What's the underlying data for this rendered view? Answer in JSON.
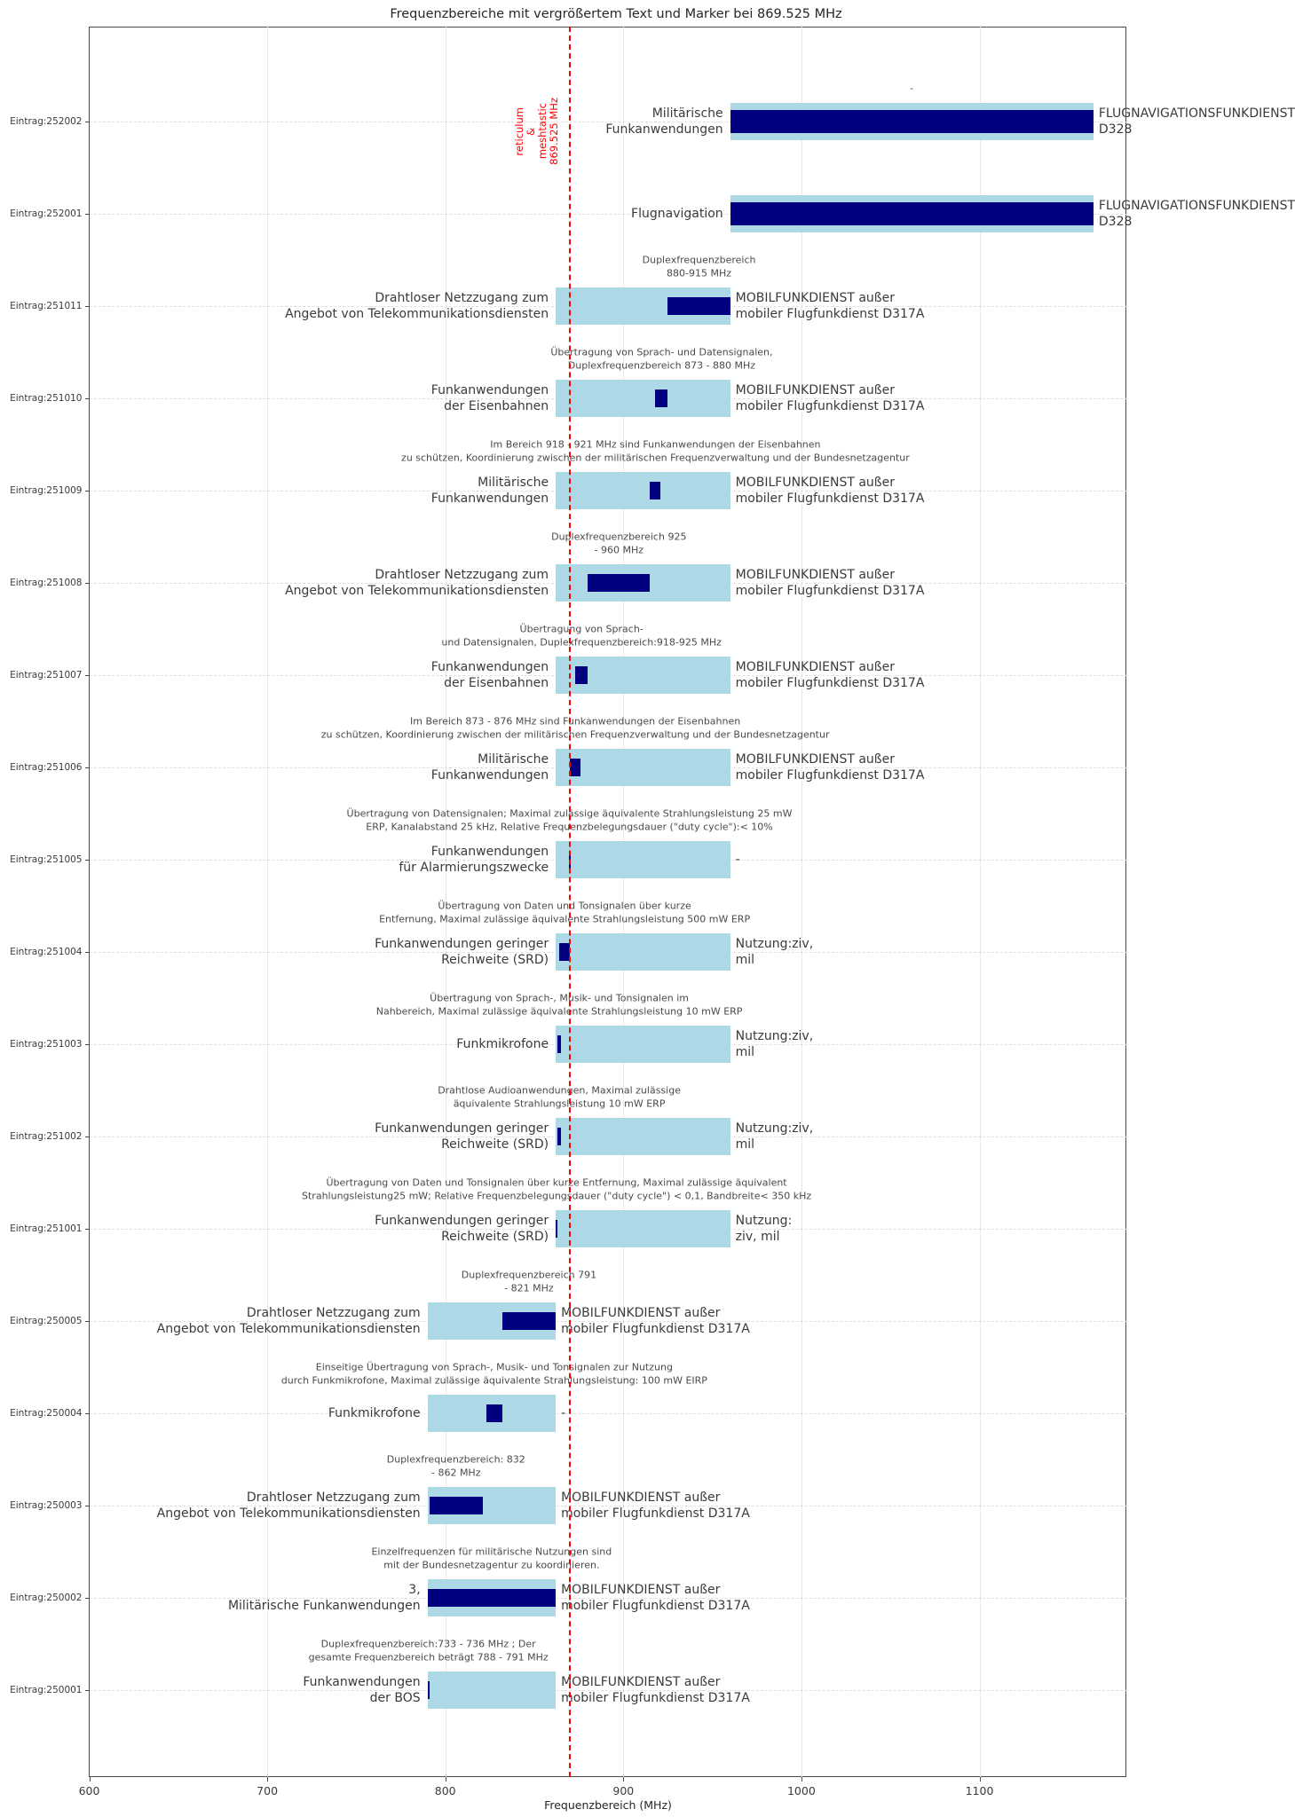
{
  "chart_data": {
    "type": "bar",
    "orientation": "horizontal-range",
    "title": "Frequenzbereiche mit vergrößertem Text und Marker bei 869.525 MHz",
    "xlabel": "Frequenzbereich (MHz)",
    "xticks": [
      600,
      700,
      800,
      900,
      1000,
      1100
    ],
    "xlim": [
      600,
      1183
    ],
    "grid": true,
    "marker": {
      "mhz": 869.525,
      "label_lines": [
        "reticulum",
        "&",
        "meshtastic",
        "869.525 MHz"
      ],
      "color": "#ff0000",
      "style": "dashed-vertical"
    },
    "legend": "none",
    "rows": [
      {
        "id": "Eintrag:252002",
        "group": "252",
        "left_label": "Militärische\nFunkanwendungen",
        "right_label": "FLUGNAVIGATIONSFUNKDIENST\nD328",
        "annotation": "-",
        "band_mhz": [
          960,
          1164
        ],
        "allocation_mhz": [
          960,
          1164
        ]
      },
      {
        "id": "Eintrag:252001",
        "group": "252",
        "left_label": "Flugnavigation",
        "right_label": "FLUGNAVIGATIONSFUNKDIENST\nD328",
        "annotation": "",
        "band_mhz": [
          960,
          1164
        ],
        "allocation_mhz": [
          960,
          1164
        ]
      },
      {
        "id": "Eintrag:251011",
        "group": "251",
        "left_label": "Drahtloser Netzzugang zum\nAngebot von Telekommunikationsdiensten",
        "right_label": "MOBILFUNKDIENST außer\nmobiler Flugfunkdienst D317A",
        "annotation": "Duplexfrequenzbereich\n880-915 MHz",
        "band_mhz": [
          862,
          960
        ],
        "allocation_mhz": [
          925,
          960
        ]
      },
      {
        "id": "Eintrag:251010",
        "group": "251",
        "left_label": "Funkanwendungen\nder Eisenbahnen",
        "right_label": "MOBILFUNKDIENST außer\nmobiler Flugfunkdienst D317A",
        "annotation": "Übertragung von Sprach- und Datensignalen,\nDuplexfrequenzbereich 873 - 880 MHz",
        "band_mhz": [
          862,
          960
        ],
        "allocation_mhz": [
          918,
          925
        ]
      },
      {
        "id": "Eintrag:251009",
        "group": "251",
        "left_label": "Militärische\nFunkanwendungen",
        "right_label": "MOBILFUNKDIENST außer\nmobiler Flugfunkdienst D317A",
        "annotation": "Im Bereich 918 - 921 MHz sind Funkanwendungen der Eisenbahnen\nzu schützen, Koordinierung zwischen der militärischen Frequenzverwaltung und der Bundesnetzagentur",
        "band_mhz": [
          862,
          960
        ],
        "allocation_mhz": [
          915,
          921
        ]
      },
      {
        "id": "Eintrag:251008",
        "group": "251",
        "left_label": "Drahtloser Netzzugang zum\nAngebot von Telekommunikationsdiensten",
        "right_label": "MOBILFUNKDIENST außer\nmobiler Flugfunkdienst D317A",
        "annotation": "Duplexfrequenzbereich 925\n- 960 MHz",
        "band_mhz": [
          862,
          960
        ],
        "allocation_mhz": [
          880,
          915
        ]
      },
      {
        "id": "Eintrag:251007",
        "group": "251",
        "left_label": "Funkanwendungen\nder Eisenbahnen",
        "right_label": "MOBILFUNKDIENST außer\nmobiler Flugfunkdienst D317A",
        "annotation": "Übertragung von Sprach-\nund Datensignalen, Duplexfrequenzbereich:918-925 MHz",
        "band_mhz": [
          862,
          960
        ],
        "allocation_mhz": [
          873,
          880
        ]
      },
      {
        "id": "Eintrag:251006",
        "group": "251",
        "left_label": "Militärische\nFunkanwendungen",
        "right_label": "MOBILFUNKDIENST außer\nmobiler Flugfunkdienst D317A",
        "annotation": "Im Bereich 873 - 876 MHz sind Funkanwendungen der Eisenbahnen\nzu schützen, Koordinierung zwischen der militärischen Frequenzverwaltung und der Bundesnetzagentur",
        "band_mhz": [
          862,
          960
        ],
        "allocation_mhz": [
          870,
          876
        ]
      },
      {
        "id": "Eintrag:251005",
        "group": "251",
        "left_label": "Funkanwendungen\nfür Alarmierungszwecke",
        "right_label": "-",
        "annotation": "Übertragung von Datensignalen; Maximal zulässige äquivalente Strahlungsleistung 25 mW\nERP, Kanalabstand 25 kHz, Relative Frequenzbelegungsdauer (\"duty cycle\"):< 10%",
        "band_mhz": [
          862,
          960
        ],
        "allocation_mhz": [
          869.4,
          870
        ]
      },
      {
        "id": "Eintrag:251004",
        "group": "251",
        "left_label": "Funkanwendungen geringer\nReichweite (SRD)",
        "right_label": "Nutzung:ziv,\nmil",
        "annotation": "Übertragung von Daten und Tonsignalen über kurze\nEntfernung, Maximal zulässige äquivalente Strahlungsleistung 500 mW ERP",
        "band_mhz": [
          862,
          960
        ],
        "allocation_mhz": [
          864,
          870
        ]
      },
      {
        "id": "Eintrag:251003",
        "group": "251",
        "left_label": "Funkmikrofone",
        "right_label": "Nutzung:ziv,\nmil",
        "annotation": "Übertragung von Sprach-, Musik- und Tonsignalen im\nNahbereich, Maximal zulässige äquivalente Strahlungsleistung 10 mW ERP",
        "band_mhz": [
          862,
          960
        ],
        "allocation_mhz": [
          863,
          865
        ]
      },
      {
        "id": "Eintrag:251002",
        "group": "251",
        "left_label": "Funkanwendungen geringer\nReichweite (SRD)",
        "right_label": "Nutzung:ziv,\nmil",
        "annotation": "Drahtlose Audioanwendungen, Maximal zulässige\näquivalente Strahlungsleistung 10 mW ERP",
        "band_mhz": [
          862,
          960
        ],
        "allocation_mhz": [
          863,
          865
        ]
      },
      {
        "id": "Eintrag:251001",
        "group": "251",
        "left_label": "Funkanwendungen geringer\nReichweite (SRD)",
        "right_label": "Nutzung:\nziv, mil",
        "annotation": "Übertragung von Daten und Tonsignalen über kurze Entfernung, Maximal zulässige äquivalent\nStrahlungsleistung25 mW; Relative Frequenzbelegungsdauer (\"duty cycle\") < 0,1, Bandbreite< 350 kHz",
        "band_mhz": [
          862,
          960
        ],
        "allocation_mhz": [
          862,
          863
        ]
      },
      {
        "id": "Eintrag:250005",
        "group": "250",
        "left_label": "Drahtloser Netzzugang zum\nAngebot von Telekommunikationsdiensten",
        "right_label": "MOBILFUNKDIENST außer\nmobiler Flugfunkdienst D317A",
        "annotation": "Duplexfrequenzbereich 791\n- 821 MHz",
        "band_mhz": [
          790,
          862
        ],
        "allocation_mhz": [
          832,
          862
        ]
      },
      {
        "id": "Eintrag:250004",
        "group": "250",
        "left_label": "Funkmikrofone",
        "right_label": "-",
        "annotation": "Einseitige Übertragung von Sprach-, Musik- und Tonsignalen zur Nutzung\ndurch Funkmikrofone, Maximal zulässige äquivalente Strahlungsleistung: 100 mW EIRP",
        "band_mhz": [
          790,
          862
        ],
        "allocation_mhz": [
          823,
          832
        ]
      },
      {
        "id": "Eintrag:250003",
        "group": "250",
        "left_label": "Drahtloser Netzzugang zum\nAngebot von Telekommunikationsdiensten",
        "right_label": "MOBILFUNKDIENST außer\nmobiler Flugfunkdienst D317A",
        "annotation": "Duplexfrequenzbereich: 832\n- 862 MHz",
        "band_mhz": [
          790,
          862
        ],
        "allocation_mhz": [
          791,
          821
        ]
      },
      {
        "id": "Eintrag:250002",
        "group": "250",
        "left_label": "3,\nMilitärische Funkanwendungen",
        "right_label": "MOBILFUNKDIENST außer\nmobiler Flugfunkdienst D317A",
        "annotation": "Einzelfrequenzen für militärische Nutzungen sind\nmit der Bundesnetzagentur zu koordinieren.",
        "band_mhz": [
          790,
          862
        ],
        "allocation_mhz": [
          790,
          862
        ]
      },
      {
        "id": "Eintrag:250001",
        "group": "250",
        "left_label": "Funkanwendungen\nder BOS",
        "right_label": "MOBILFUNKDIENST außer\nmobiler Flugfunkdienst D317A",
        "annotation": "Duplexfrequenzbereich:733 - 736 MHz ; Der\ngesamte Frequenzbereich beträgt 788 - 791 MHz",
        "band_mhz": [
          790,
          862
        ],
        "allocation_mhz": [
          790,
          791
        ]
      }
    ],
    "colors": {
      "band": "#ADD8E6",
      "allocation": "#000080",
      "marker": "#ff0000",
      "grid": "#dcdcdc",
      "spine": "#4a4a4a",
      "text": "#3a3a3a"
    }
  }
}
